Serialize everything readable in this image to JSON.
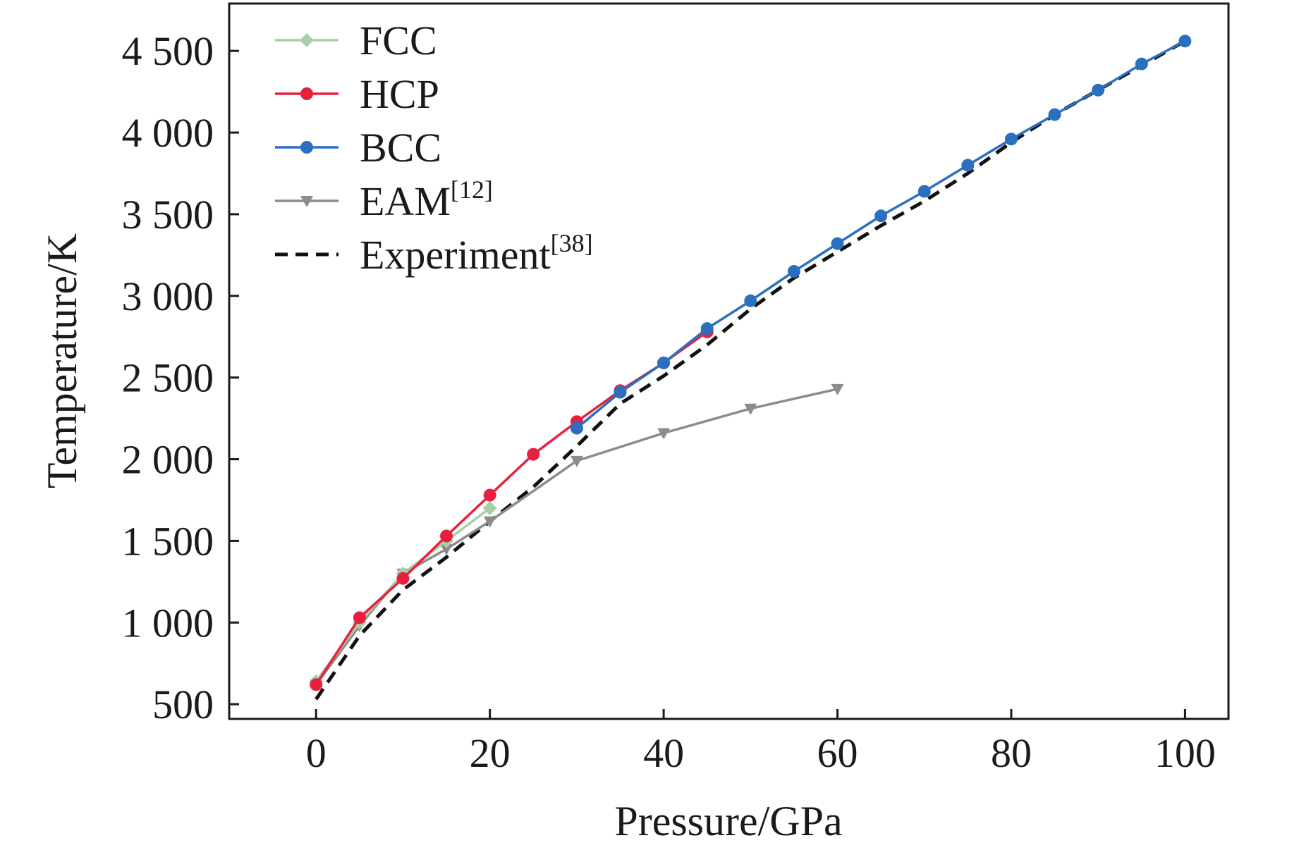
{
  "chart_data": {
    "type": "line",
    "xlabel": "Pressure/GPa",
    "ylabel": "Temperature/K",
    "xlim": [
      -10,
      105
    ],
    "ylim": [
      410,
      4790
    ],
    "x_ticks": [
      0,
      20,
      40,
      60,
      80,
      100
    ],
    "x_tick_labels": [
      "0",
      "20",
      "40",
      "60",
      "80",
      "100"
    ],
    "y_ticks": [
      500,
      1000,
      1500,
      2000,
      2500,
      3000,
      3500,
      4000,
      4500
    ],
    "y_tick_labels": [
      "500",
      "1 000",
      "1 500",
      "2 000",
      "2 500",
      "3 000",
      "3 500",
      "4 000",
      "4 500"
    ],
    "grid": false,
    "legend_position": "top-left",
    "series": [
      {
        "name": "FCC",
        "ref": "",
        "color": "#a9cfa4",
        "marker": "diamond",
        "dashed": false,
        "x": [
          0,
          5,
          10,
          15,
          20
        ],
        "y": [
          640,
          1000,
          1300,
          1500,
          1700
        ]
      },
      {
        "name": "HCP",
        "ref": "",
        "color": "#e8203f",
        "marker": "circle",
        "dashed": false,
        "x": [
          0,
          5,
          10,
          15,
          20,
          25,
          30,
          35,
          40,
          45
        ],
        "y": [
          620,
          1030,
          1270,
          1530,
          1780,
          2030,
          2230,
          2420,
          2590,
          2780
        ]
      },
      {
        "name": "BCC",
        "ref": "",
        "color": "#2c6fbf",
        "marker": "circle",
        "dashed": false,
        "x": [
          30,
          35,
          40,
          45,
          50,
          55,
          60,
          65,
          70,
          75,
          80,
          85,
          90,
          95,
          100
        ],
        "y": [
          2190,
          2410,
          2590,
          2800,
          2970,
          3150,
          3320,
          3490,
          3640,
          3800,
          3960,
          4110,
          4260,
          4420,
          4560
        ]
      },
      {
        "name": "EAM",
        "ref": "[12]",
        "color": "#8c8c8c",
        "marker": "triangle-down",
        "dashed": false,
        "x": [
          0,
          5,
          10,
          15,
          20,
          30,
          40,
          50,
          60
        ],
        "y": [
          620,
          980,
          1300,
          1450,
          1620,
          1990,
          2160,
          2310,
          2430
        ]
      },
      {
        "name": "Experiment",
        "ref": "[38]",
        "color": "#111111",
        "marker": "none",
        "dashed": true,
        "x": [
          0,
          5,
          10,
          15,
          20,
          25,
          30,
          35,
          40,
          45,
          50,
          55,
          60,
          65,
          70,
          75,
          80,
          85,
          90,
          95,
          100
        ],
        "y": [
          530,
          920,
          1200,
          1400,
          1620,
          1830,
          2080,
          2340,
          2510,
          2700,
          2920,
          3110,
          3270,
          3430,
          3580,
          3750,
          3940,
          4110,
          4260,
          4410,
          4560
        ]
      }
    ]
  }
}
